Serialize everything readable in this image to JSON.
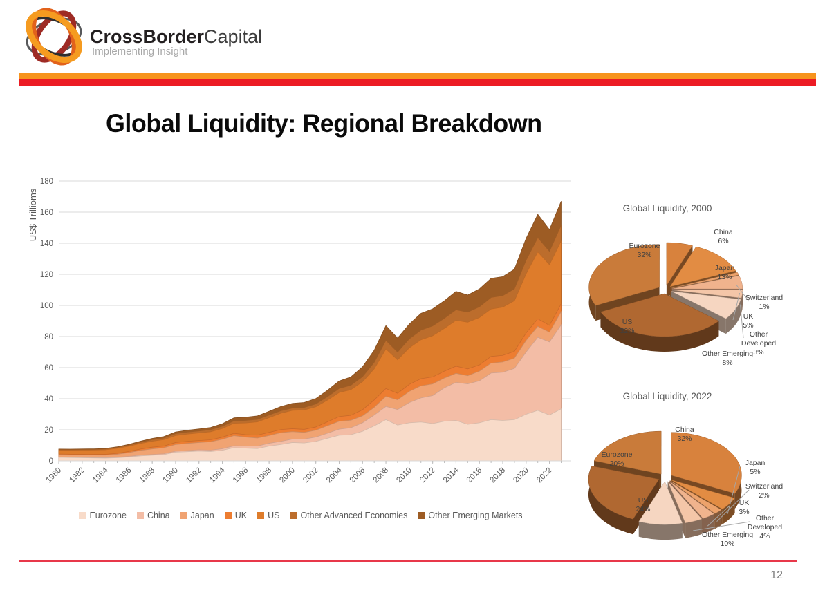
{
  "header": {
    "brand_bold": "CrossBorder",
    "brand_light": "Capital",
    "tagline": "Implementing Insight"
  },
  "slide": {
    "title": "Global Liquidity: Regional Breakdown",
    "page_number": "12"
  },
  "colors": {
    "stripe_orange": "#F7941D",
    "stripe_red": "#EC1C24",
    "footer_red": "#E8384A",
    "grid": "#D9D9D9",
    "axis_text": "#595959",
    "tick": "#BFBFBF",
    "pie_label_text": "#404040"
  },
  "chart_data": [
    {
      "type": "area",
      "title": "",
      "ylabel": "US$ Trillioms",
      "ylim": [
        0,
        180
      ],
      "xlim": [
        1980,
        2023.8
      ],
      "yticks": [
        0,
        20,
        40,
        60,
        80,
        100,
        120,
        140,
        160,
        180
      ],
      "xticks": [
        1980,
        1982,
        1984,
        1986,
        1988,
        1990,
        1992,
        1994,
        1996,
        1998,
        2000,
        2002,
        2004,
        2006,
        2008,
        2010,
        2012,
        2014,
        2016,
        2018,
        2020,
        2022
      ],
      "legend_position": "bottom",
      "grid": true,
      "x": [
        1980,
        1981,
        1982,
        1983,
        1984,
        1985,
        1986,
        1987,
        1988,
        1989,
        1990,
        1991,
        1992,
        1993,
        1994,
        1995,
        1996,
        1997,
        1998,
        1999,
        2000,
        2001,
        2002,
        2003,
        2004,
        2005,
        2006,
        2007,
        2008,
        2009,
        2010,
        2011,
        2012,
        2013,
        2014,
        2015,
        2016,
        2017,
        2018,
        2019,
        2020,
        2021,
        2022,
        2023
      ],
      "series": [
        {
          "name": "Eurozone",
          "color": "#F8DBC9",
          "values": [
            2.3,
            2.1,
            2.0,
            1.9,
            1.8,
            2.0,
            2.5,
            3.2,
            3.6,
            4.0,
            5.6,
            5.9,
            6.3,
            6.0,
            6.8,
            8.5,
            8.2,
            7.9,
            9.5,
            10.5,
            11.8,
            11.5,
            12.5,
            14.5,
            16.5,
            16.8,
            19.0,
            22.5,
            26.5,
            23.0,
            24.5,
            25.0,
            24.0,
            25.5,
            26.0,
            23.5,
            24.5,
            26.5,
            26.0,
            26.5,
            30.0,
            32.5,
            29.5,
            33.5
          ]
        },
        {
          "name": "China",
          "color": "#F3BDA6",
          "values": [
            0.2,
            0.2,
            0.25,
            0.3,
            0.3,
            0.35,
            0.4,
            0.45,
            0.5,
            0.55,
            0.6,
            0.7,
            0.8,
            0.9,
            1.0,
            1.2,
            1.4,
            1.6,
            1.8,
            2.0,
            2.2,
            2.5,
            2.8,
            3.3,
            3.9,
            4.5,
            5.5,
            7.0,
            8.5,
            10.0,
            13.0,
            15.5,
            18.0,
            21.5,
            24.5,
            26.0,
            27.0,
            30.0,
            31.0,
            33.0,
            40.0,
            47.0,
            47.0,
            54.0
          ]
        },
        {
          "name": "Japan",
          "color": "#F0A372",
          "values": [
            1.5,
            1.5,
            1.5,
            1.55,
            1.6,
            1.9,
            2.4,
            3.1,
            3.6,
            3.9,
            4.3,
            4.6,
            4.7,
            5.4,
            6.1,
            6.5,
            5.7,
            5.2,
            5.0,
            5.6,
            4.8,
            4.3,
            4.4,
            4.8,
            5.1,
            4.8,
            4.5,
            4.9,
            6.5,
            6.3,
            7.2,
            7.8,
            7.5,
            6.3,
            5.8,
            5.3,
            6.2,
            6.4,
            6.6,
            6.6,
            7.5,
            7.0,
            6.3,
            8.5
          ]
        },
        {
          "name": "UK",
          "color": "#ED7D31",
          "values": [
            0.4,
            0.45,
            0.45,
            0.5,
            0.5,
            0.6,
            0.75,
            0.85,
            1.1,
            1.1,
            1.3,
            1.35,
            1.25,
            1.25,
            1.35,
            1.5,
            1.6,
            1.85,
            2.0,
            2.0,
            1.9,
            1.95,
            2.1,
            2.5,
            3.0,
            3.2,
            3.9,
            4.8,
            5.0,
            4.2,
            4.5,
            4.6,
            4.5,
            4.4,
            4.6,
            4.4,
            4.0,
            4.3,
            4.3,
            4.4,
            4.8,
            4.9,
            4.4,
            5.0
          ]
        },
        {
          "name": "US",
          "color": "#DE7C2B",
          "values": [
            2.5,
            2.6,
            2.7,
            2.7,
            2.9,
            3.2,
            3.4,
            3.6,
            3.8,
            4.1,
            4.5,
            4.7,
            4.9,
            5.2,
            5.6,
            6.5,
            7.5,
            8.5,
            9.5,
            10.5,
            11.8,
            12.5,
            13.0,
            14.0,
            15.5,
            16.5,
            18.0,
            20.0,
            25.5,
            21.5,
            23.5,
            25.0,
            26.5,
            27.5,
            29.5,
            30.0,
            30.5,
            30.5,
            31.0,
            32.5,
            38.0,
            43.0,
            39.0,
            40.5
          ]
        },
        {
          "name": "Other Advanced Economies",
          "color": "#BC6D2C",
          "values": [
            0.4,
            0.4,
            0.4,
            0.4,
            0.5,
            0.55,
            0.6,
            0.75,
            1.0,
            1.05,
            1.2,
            1.25,
            1.3,
            1.3,
            1.45,
            1.6,
            1.6,
            1.6,
            1.7,
            1.65,
            1.5,
            1.6,
            1.8,
            2.2,
            2.6,
            2.8,
            3.3,
            4.2,
            5.5,
            5.0,
            5.8,
            6.2,
            6.3,
            6.5,
            6.8,
            6.5,
            6.9,
            7.4,
            7.4,
            7.7,
            8.8,
            9.2,
            8.6,
            10.0
          ]
        },
        {
          "name": "Other Emerging Markets",
          "color": "#9D5C24",
          "values": [
            0.3,
            0.32,
            0.35,
            0.37,
            0.4,
            0.45,
            0.55,
            0.7,
            0.85,
            0.95,
            1.1,
            1.2,
            1.3,
            1.45,
            1.6,
            1.9,
            2.1,
            2.3,
            2.4,
            2.7,
            3.0,
            3.2,
            3.5,
            4.1,
            4.8,
            5.4,
            6.3,
            7.8,
            9.5,
            9.0,
            9.5,
            10.8,
            11.0,
            11.3,
            11.8,
            11.0,
            11.5,
            12.3,
            12.2,
            12.6,
            14.0,
            15.0,
            14.0,
            15.5
          ]
        }
      ]
    },
    {
      "type": "pie",
      "title": "Global Liquidity, 2000",
      "slices": [
        {
          "label": "China",
          "value": 6,
          "pct": "6%",
          "color": "#D8823D",
          "lines": [
            "China",
            "6%"
          ],
          "label_pos": [
            84,
            -80
          ],
          "leader": false
        },
        {
          "label": "Japan",
          "value": 13,
          "pct": "13%",
          "color": "#E28C43",
          "lines": [
            "Japan",
            "13%"
          ],
          "label_pos": [
            86,
            -28
          ],
          "leader": false
        },
        {
          "label": "Switzerland",
          "value": 1,
          "pct": "1%",
          "color": "#ECA26B",
          "lines": [
            "Switzerland",
            "1%"
          ],
          "label_pos": [
            143,
            15
          ],
          "leader": true
        },
        {
          "label": "UK",
          "value": 5,
          "pct": "5%",
          "color": "#F0B38D",
          "lines": [
            "UK",
            "5%"
          ],
          "label_pos": [
            120,
            42
          ],
          "leader": true
        },
        {
          "label": "Other Developed",
          "value": 3,
          "pct": "3%",
          "color": "#F4C6A8",
          "lines": [
            "Other",
            "Developed",
            "3%"
          ],
          "label_pos": [
            135,
            68
          ],
          "leader": true
        },
        {
          "label": "Other Emerging",
          "value": 8,
          "pct": "8%",
          "color": "#F6D6C1",
          "lines": [
            "Other Emerging",
            "8%"
          ],
          "label_pos": [
            90,
            96
          ],
          "leader": false
        },
        {
          "label": "US",
          "value": 32,
          "pct": "32%",
          "color": "#B06831",
          "lines": [
            "US",
            "32%"
          ],
          "label_pos": [
            -55,
            50
          ],
          "leader": false
        },
        {
          "label": "Eurozone",
          "value": 32,
          "pct": "32%",
          "color": "#C97B3A",
          "lines": [
            "Eurozone",
            "32%"
          ],
          "label_pos": [
            -30,
            -60
          ],
          "leader": false
        }
      ]
    },
    {
      "type": "pie",
      "title": "Global Liquidity, 2022",
      "slices": [
        {
          "label": "China",
          "value": 32,
          "pct": "32%",
          "color": "#D8823D",
          "lines": [
            "China",
            "32%"
          ],
          "label_pos": [
            28,
            -66
          ],
          "leader": false
        },
        {
          "label": "Japan",
          "value": 5,
          "pct": "5%",
          "color": "#E28C43",
          "lines": [
            "Japan",
            "5%"
          ],
          "label_pos": [
            130,
            -18
          ],
          "leader": true
        },
        {
          "label": "Switzerland",
          "value": 2,
          "pct": "2%",
          "color": "#ECA26B",
          "lines": [
            "Switzerland",
            "2%"
          ],
          "label_pos": [
            143,
            16
          ],
          "leader": true
        },
        {
          "label": "UK",
          "value": 3,
          "pct": "3%",
          "color": "#F0B38D",
          "lines": [
            "UK",
            "3%"
          ],
          "label_pos": [
            114,
            40
          ],
          "leader": true
        },
        {
          "label": "Other Developed",
          "value": 4,
          "pct": "4%",
          "color": "#F4C6A8",
          "lines": [
            "Other",
            "Developed",
            "4%"
          ],
          "label_pos": [
            144,
            62
          ],
          "leader": true
        },
        {
          "label": "Other Emerging",
          "value": 10,
          "pct": "10%",
          "color": "#F6D6C1",
          "lines": [
            "Other Emerging",
            "10%"
          ],
          "label_pos": [
            90,
            86
          ],
          "leader": false
        },
        {
          "label": "US",
          "value": 24,
          "pct": "24%",
          "color": "#B06831",
          "lines": [
            "US",
            "24%"
          ],
          "label_pos": [
            -32,
            36
          ],
          "leader": false
        },
        {
          "label": "Eurozone",
          "value": 20,
          "pct": "20%",
          "color": "#C97B3A",
          "lines": [
            "Eurozone",
            "20%"
          ],
          "label_pos": [
            -70,
            -30
          ],
          "leader": false
        }
      ]
    }
  ]
}
